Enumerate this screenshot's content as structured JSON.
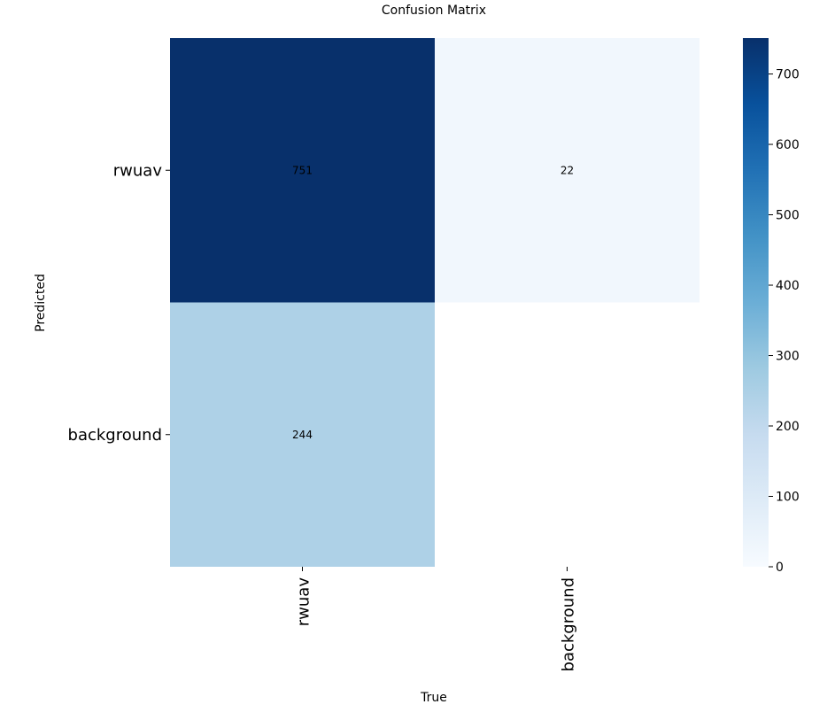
{
  "chart_data": {
    "type": "heatmap",
    "title": "Confusion Matrix",
    "xlabel": "True",
    "ylabel": "Predicted",
    "x_categories": [
      "rwuav",
      "background"
    ],
    "y_categories": [
      "rwuav",
      "background"
    ],
    "values": [
      [
        751,
        22
      ],
      [
        244,
        null
      ]
    ],
    "colorbar": {
      "min": 0,
      "max": 751,
      "ticks": [
        0,
        100,
        200,
        300,
        400,
        500,
        600,
        700
      ],
      "colormap": "Blues"
    },
    "colors": {
      "min": "#f7fbff",
      "max": "#08306b"
    }
  }
}
